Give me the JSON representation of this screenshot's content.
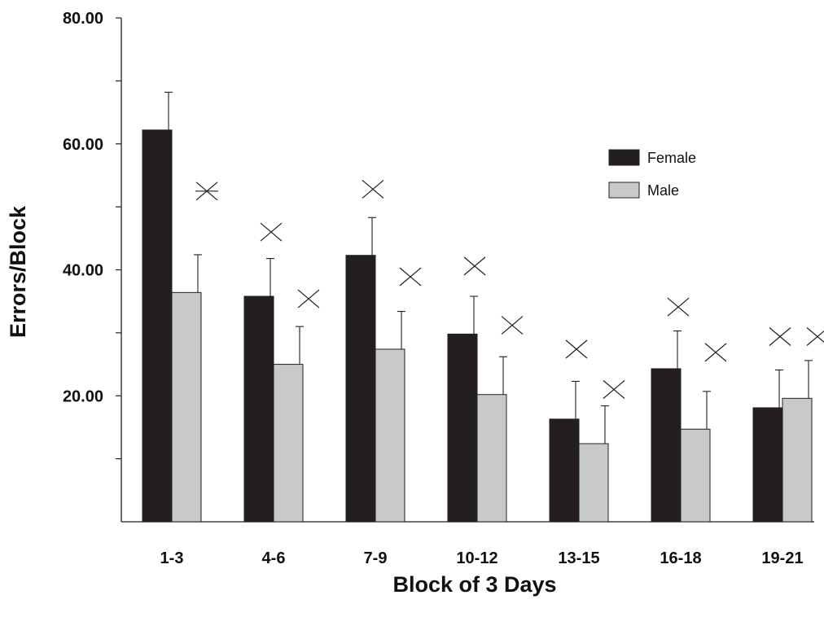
{
  "chart_data": {
    "type": "bar",
    "xlabel": "Block of 3 Days",
    "ylabel": "Errors/Block",
    "ylim": [
      0,
      80
    ],
    "yticks_labeled": [
      "20.00",
      "40.00",
      "60.00",
      "80.00"
    ],
    "ytick_values_labeled": [
      20,
      40,
      60,
      80
    ],
    "ytick_values_minor": [
      10,
      30,
      50,
      70
    ],
    "categories": [
      "1-3",
      "4-6",
      "7-9",
      "10-12",
      "13-15",
      "16-18",
      "19-21"
    ],
    "series": [
      {
        "name": "Female",
        "color": "#231f20",
        "values": [
          62.2,
          35.8,
          42.3,
          29.8,
          16.3,
          24.3,
          18.1
        ],
        "error": [
          6.0,
          6.0,
          6.0,
          6.0,
          6.0,
          6.0,
          6.0
        ]
      },
      {
        "name": "Male",
        "color": "#c8c9cb",
        "values": [
          36.4,
          25.0,
          27.4,
          20.2,
          12.4,
          14.7,
          19.6
        ],
        "error": [
          6.0,
          6.0,
          6.0,
          6.0,
          6.0,
          6.0,
          6.0
        ]
      }
    ],
    "markers": {
      "symbol": "×",
      "female": [
        null,
        46.0,
        52.8,
        40.6,
        27.4,
        34.1,
        29.4
      ],
      "male": [
        52.5,
        35.4,
        38.9,
        31.2,
        21.0,
        26.9,
        29.4
      ],
      "male_first_star": true
    },
    "legend_position": "top-right",
    "grid": false
  }
}
